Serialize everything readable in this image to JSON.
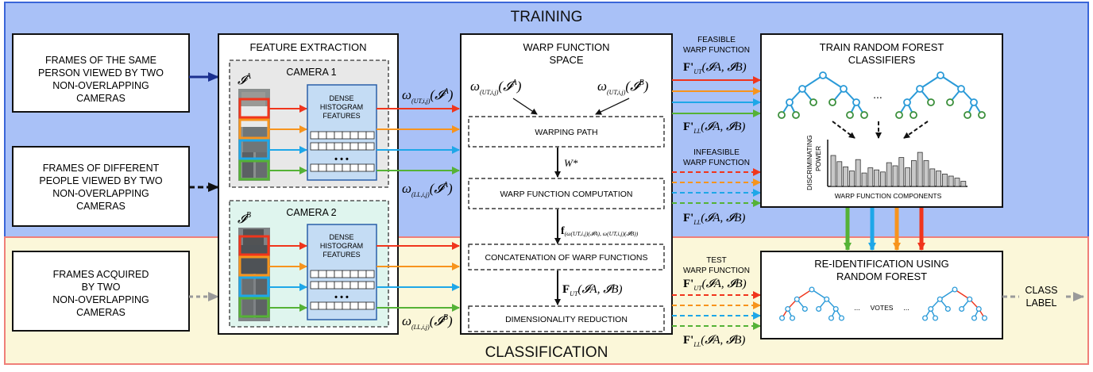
{
  "regions": {
    "training_label": "TRAINING",
    "classification_label": "CLASSIFICATION",
    "training_color": "#a9c1f7",
    "classification_color": "#fbf7d9"
  },
  "inputs": {
    "same_person": [
      "FRAMES OF THE SAME",
      "PERSON VIEWED BY TWO",
      "NON-OVERLAPPING",
      "CAMERAS"
    ],
    "different_people": [
      "FRAMES OF DIFFERENT",
      "PEOPLE VIEWED BY TWO",
      "NON-OVERLAPPING",
      "CAMERAS"
    ],
    "acquired": [
      "FRAMES ACQUIRED",
      "BY TWO",
      "NON-OVERLAPPING",
      "CAMERAS"
    ]
  },
  "feature_extraction": {
    "title": "FEATURE EXTRACTION",
    "camera1": {
      "title": "CAMERA 1",
      "image_symbol": "𝓘",
      "image_sup": "A",
      "dense": [
        "DENSE",
        "HISTOGRAM",
        "FEATURES"
      ],
      "dots": "• • •"
    },
    "camera2": {
      "title": "CAMERA 2",
      "image_symbol": "𝓘",
      "image_sup": "B",
      "dense": [
        "DENSE",
        "HISTOGRAM",
        "FEATURES"
      ],
      "dots": "• • •"
    }
  },
  "edge_labels": {
    "omega_ut_a": {
      "sym": "ω",
      "sub": "(UT,i,j)",
      "arg": "(𝓘",
      "sup": "A",
      "close": ")"
    },
    "omega_ll_a": {
      "sym": "ω",
      "sub": "(LL,i,j)",
      "arg": "(𝓘",
      "sup": "A",
      "close": ")"
    },
    "omega_ut_b": {
      "sym": "ω",
      "sub": "(UT,i,j)",
      "arg": "(𝓘",
      "sup": "B",
      "close": ")"
    },
    "omega_ll_b": {
      "sym": "ω",
      "sub": "(LL,i,j)",
      "arg": "(𝓘",
      "sup": "B",
      "close": ")"
    }
  },
  "warp_space": {
    "title": [
      "WARP FUNCTION",
      "SPACE"
    ],
    "warping_path": "WARPING PATH",
    "w_star": "W*",
    "warp_computation": "WARP FUNCTION COMPUTATION",
    "f_label": "f",
    "f_sub": "(ω(UT,i,j)(𝓘A), ω(UT,i,j)(𝓘B))",
    "concatenation": "CONCATENATION OF WARP FUNCTIONS",
    "F_ut": "F",
    "F_ut_sub": "UT",
    "F_ut_arg": "(𝓘A, 𝓘B)",
    "dim_reduction": "DIMENSIONALITY REDUCTION"
  },
  "feature_groups": {
    "feasible": [
      "FEASIBLE",
      "WARP FUNCTION"
    ],
    "infeasible": [
      "INFEASIBLE",
      "WARP FUNCTION"
    ],
    "test": [
      "TEST",
      "WARP FUNCTION"
    ],
    "F_prime": "F'",
    "sub_ut": "UT",
    "sub_ll": "LL",
    "arg": "(𝓘A, 𝓘B)"
  },
  "train_rf": {
    "title": [
      "TRAIN RANDOM FOREST",
      "CLASSIFIERS"
    ],
    "dots": "...",
    "ylabel": [
      "DISCRIMINATING",
      "POWER"
    ],
    "xlabel": "WARP FUNCTION COMPONENTS",
    "bars": [
      3,
      2.4,
      1.9,
      1.5,
      2.6,
      1.3,
      1.8,
      1.6,
      1.4,
      2.3,
      2.0,
      2.8,
      1.8,
      2.5,
      3.3,
      2.5,
      1.7,
      1.5,
      1.2,
      1.0,
      0.8,
      0.5
    ]
  },
  "reid": {
    "title": [
      "RE-IDENTIFICATION USING",
      "RANDOM FOREST"
    ],
    "dots_left": "...",
    "votes": "VOTES",
    "dots_right": "..."
  },
  "output": [
    "CLASS",
    "LABEL"
  ],
  "colors": {
    "red": "#f0351c",
    "orange": "#f7941d",
    "blue": "#1ea7e8",
    "green": "#55b236",
    "tree": "#2a9ad8",
    "leaf": "#3b8f3b"
  }
}
